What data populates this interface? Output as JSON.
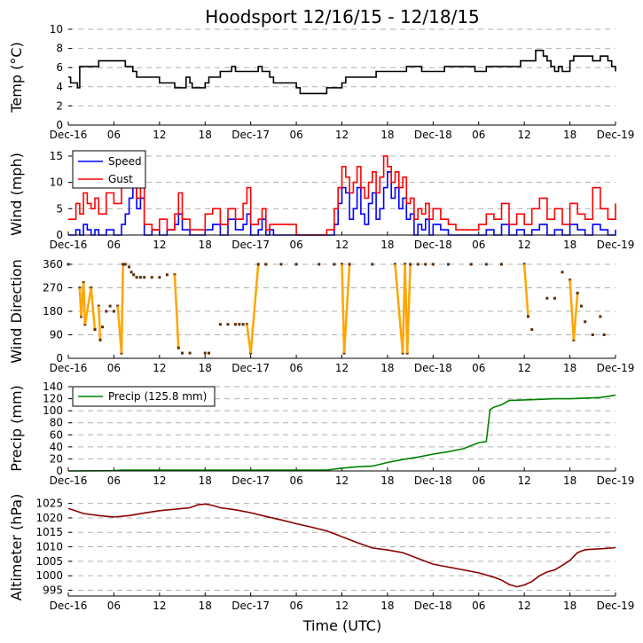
{
  "title": "Hoodsport 12/16/15 - 12/18/15",
  "xlabel": "Time (UTC)",
  "x_ticks": [
    {
      "h": 0,
      "label": "Dec-16"
    },
    {
      "h": 6,
      "label": "06"
    },
    {
      "h": 12,
      "label": "12"
    },
    {
      "h": 18,
      "label": "18"
    },
    {
      "h": 24,
      "label": "Dec-17"
    },
    {
      "h": 30,
      "label": "06"
    },
    {
      "h": 36,
      "label": "12"
    },
    {
      "h": 42,
      "label": "18"
    },
    {
      "h": 48,
      "label": "Dec-18"
    },
    {
      "h": 54,
      "label": "06"
    },
    {
      "h": 60,
      "label": "12"
    },
    {
      "h": 66,
      "label": "18"
    },
    {
      "h": 72,
      "label": "Dec-19"
    }
  ],
  "colors": {
    "temp": "#000000",
    "speed": "#0000ff",
    "gust": "#ff0000",
    "direction": "#ffa500",
    "precip": "#008000",
    "altimeter": "#8b0000",
    "grid": "#b0b0b0"
  },
  "chart_data": [
    {
      "type": "line",
      "ylabel": "Temp ($^\\circ$C)",
      "ylabel_display": "Temp (°C)",
      "ylim": [
        0,
        10
      ],
      "yticks": [
        0,
        2,
        4,
        6,
        8,
        10
      ],
      "xlim_hours": [
        0,
        72
      ],
      "series": [
        {
          "name": "Temp",
          "x": [
            0,
            0.3,
            0.5,
            1.2,
            1.5,
            4,
            7,
            7.5,
            8.5,
            9,
            12,
            14,
            14.5,
            15.5,
            16,
            16.3,
            18,
            18.5,
            20,
            20.5,
            21,
            21.5,
            22,
            24,
            25,
            25.5,
            26.5,
            27,
            30,
            30.5,
            33,
            34,
            35,
            35.5,
            36,
            36.5,
            40,
            40.5,
            44,
            44.5,
            46,
            46.5,
            49,
            49.5,
            53,
            53.5,
            54,
            55,
            55.5,
            58,
            59,
            59.5,
            61.5,
            62,
            62.5,
            63,
            63.5,
            64,
            64.5,
            65,
            66,
            66.5,
            67,
            68,
            69,
            70,
            70.5,
            71,
            71.5,
            72
          ],
          "y": [
            5.0,
            4.4,
            4.4,
            3.9,
            6.1,
            6.7,
            6.7,
            6.1,
            5.6,
            5.0,
            4.4,
            3.9,
            3.9,
            5.0,
            4.4,
            3.9,
            4.4,
            5.0,
            5.6,
            5.6,
            5.6,
            6.1,
            5.6,
            5.6,
            6.1,
            5.6,
            5.0,
            4.4,
            3.9,
            3.3,
            3.3,
            3.9,
            3.9,
            3.9,
            4.4,
            5.0,
            5.0,
            5.6,
            5.6,
            6.1,
            6.1,
            5.6,
            5.6,
            6.1,
            6.1,
            5.6,
            5.6,
            6.1,
            6.1,
            6.1,
            6.1,
            6.7,
            7.8,
            7.8,
            7.2,
            6.7,
            6.1,
            5.6,
            6.1,
            5.6,
            6.7,
            7.2,
            7.2,
            7.2,
            6.7,
            7.2,
            7.2,
            6.7,
            6.1,
            5.6
          ]
        }
      ]
    },
    {
      "type": "line",
      "ylabel": "Wind (mph)",
      "ylim": [
        0,
        16
      ],
      "yticks": [
        0,
        5,
        10,
        15
      ],
      "xlim_hours": [
        0,
        72
      ],
      "legend": {
        "location": "top-left",
        "entries": [
          "Speed",
          "Gust"
        ]
      },
      "series": [
        {
          "name": "Speed",
          "x": [
            0,
            1,
            1.5,
            2,
            2.5,
            3,
            3.5,
            4,
            5,
            6,
            7,
            7.5,
            8,
            8.5,
            9,
            9.5,
            10,
            11,
            12,
            13,
            14,
            14.5,
            15,
            16,
            17,
            18,
            19,
            20,
            21,
            22,
            23,
            23.5,
            24,
            25,
            25.5,
            26,
            26.5,
            27,
            28,
            29,
            30,
            31,
            32,
            33,
            34,
            35,
            35.5,
            36,
            36.5,
            37,
            37.5,
            38,
            38.5,
            39,
            39.5,
            40,
            40.5,
            41,
            41.5,
            42,
            42.5,
            43,
            43.5,
            44,
            44.5,
            45,
            45.5,
            46,
            46.5,
            47,
            47.5,
            48,
            49,
            50,
            51,
            52,
            53,
            54,
            55,
            56,
            57,
            58,
            59,
            60,
            61,
            62,
            63,
            64,
            65,
            66,
            67,
            68,
            69,
            70,
            71,
            72
          ],
          "y": [
            0,
            1,
            0,
            2,
            1,
            0,
            1,
            0,
            1,
            0,
            2,
            4,
            7,
            9,
            5,
            7,
            0,
            1,
            0,
            1,
            2,
            4,
            1,
            0,
            0,
            1,
            2,
            0,
            3,
            1,
            2,
            4,
            0,
            1,
            3,
            0,
            1,
            0,
            0,
            0,
            0,
            0,
            0,
            0,
            0,
            2,
            6,
            9,
            8,
            3,
            5,
            9,
            4,
            2,
            6,
            8,
            3,
            5,
            9,
            12,
            7,
            9,
            5,
            7,
            3,
            4,
            0,
            2,
            1,
            3,
            0,
            2,
            1,
            0,
            0,
            0,
            0,
            0,
            1,
            0,
            2,
            0,
            1,
            0,
            1,
            2,
            0,
            1,
            0,
            2,
            1,
            0,
            2,
            1,
            0,
            1
          ]
        },
        {
          "name": "Gust",
          "x": [
            0,
            1,
            1.5,
            2,
            2.5,
            3,
            3.5,
            4,
            5,
            6,
            7,
            7.5,
            8,
            8.5,
            9,
            9.5,
            10,
            11,
            12,
            13,
            14,
            14.5,
            15,
            16,
            17,
            18,
            19,
            20,
            21,
            22,
            23,
            23.5,
            24,
            25,
            25.5,
            26,
            26.5,
            27,
            28,
            29,
            30,
            31,
            32,
            33,
            34,
            35,
            35.5,
            36,
            36.5,
            37,
            37.5,
            38,
            38.5,
            39,
            39.5,
            40,
            40.5,
            41,
            41.5,
            42,
            42.5,
            43,
            43.5,
            44,
            44.5,
            45,
            45.5,
            46,
            46.5,
            47,
            47.5,
            48,
            49,
            50,
            51,
            52,
            53,
            54,
            55,
            56,
            57,
            58,
            59,
            60,
            61,
            62,
            63,
            64,
            65,
            66,
            67,
            68,
            69,
            70,
            71,
            72
          ],
          "y": [
            3,
            6,
            4,
            8,
            6,
            5,
            7,
            4,
            8,
            6,
            10,
            12,
            13,
            11,
            7,
            9,
            2,
            1,
            3,
            1,
            4,
            8,
            3,
            1,
            1,
            4,
            5,
            2,
            5,
            3,
            6,
            9,
            2,
            3,
            5,
            1,
            2,
            2,
            2,
            2,
            0,
            0,
            0,
            0,
            1,
            5,
            9,
            13,
            11,
            8,
            10,
            13,
            9,
            7,
            10,
            12,
            8,
            11,
            15,
            13,
            10,
            12,
            9,
            11,
            6,
            7,
            3,
            5,
            4,
            6,
            3,
            5,
            3,
            2,
            1,
            1,
            1,
            2,
            4,
            3,
            6,
            2,
            4,
            2,
            5,
            7,
            3,
            5,
            2,
            6,
            4,
            3,
            9,
            5,
            3,
            6
          ]
        }
      ]
    },
    {
      "type": "scatter",
      "ylabel": "Wind Direction",
      "ylim": [
        0,
        360
      ],
      "yticks": [
        0,
        90,
        180,
        270,
        360
      ],
      "xlim_hours": [
        0,
        72
      ],
      "series": [
        {
          "name": "Direction",
          "x": [
            0,
            1.5,
            1.7,
            2,
            2.2,
            3,
            3.5,
            4,
            4.2,
            4.5,
            5,
            5.5,
            6,
            6.5,
            7,
            7.2,
            7.5,
            8,
            8.3,
            8.6,
            9,
            9.5,
            10,
            11,
            12,
            13,
            14,
            14.5,
            15,
            16,
            18,
            18.5,
            20,
            21,
            22,
            22.5,
            23,
            23.5,
            24,
            25,
            26,
            28,
            30,
            33,
            35,
            36,
            36.3,
            37,
            40,
            43,
            44,
            44.3,
            44.6,
            45,
            46,
            47,
            48,
            50,
            53,
            55,
            57,
            60,
            60.5,
            61,
            63,
            64,
            65,
            66,
            66.5,
            67,
            67.5,
            68,
            69,
            70,
            70.5
          ],
          "y": [
            360,
            270,
            160,
            290,
            130,
            270,
            110,
            200,
            70,
            120,
            180,
            200,
            180,
            200,
            20,
            360,
            360,
            350,
            330,
            320,
            310,
            310,
            310,
            310,
            310,
            320,
            320,
            40,
            20,
            20,
            20,
            20,
            130,
            130,
            130,
            130,
            130,
            130,
            20,
            360,
            360,
            360,
            360,
            360,
            360,
            360,
            20,
            360,
            360,
            360,
            20,
            360,
            20,
            360,
            360,
            360,
            360,
            360,
            360,
            360,
            360,
            360,
            160,
            110,
            230,
            230,
            330,
            300,
            70,
            250,
            200,
            140,
            90,
            160,
            90
          ]
        }
      ]
    },
    {
      "type": "line",
      "ylabel": "Precip (mm)",
      "ylim": [
        0,
        140
      ],
      "yticks": [
        0,
        20,
        40,
        60,
        80,
        100,
        120,
        140
      ],
      "xlim_hours": [
        0,
        72
      ],
      "legend": {
        "location": "top-left",
        "entries": [
          "Precip (125.8 mm)"
        ]
      },
      "series": [
        {
          "name": "Precip (125.8 mm)",
          "x": [
            0,
            6,
            7,
            12,
            24,
            30,
            33,
            34,
            36,
            38,
            40,
            42,
            44,
            46,
            48,
            50,
            52,
            53,
            54,
            55,
            55.5,
            56,
            56.5,
            57,
            58,
            60,
            62,
            64,
            66,
            68,
            70,
            71,
            72
          ],
          "y": [
            0,
            0.5,
            1.5,
            1.5,
            1.5,
            1.5,
            1.5,
            1.5,
            4.5,
            7,
            8,
            14,
            19,
            23,
            28,
            32,
            37,
            42,
            47,
            49,
            102,
            106,
            108,
            110,
            117,
            118,
            119,
            120,
            120,
            121,
            122,
            124,
            125.8
          ]
        }
      ]
    },
    {
      "type": "line",
      "ylabel": "Altimeter (hPa)",
      "ylim": [
        993,
        1025.5
      ],
      "yticks": [
        995,
        1000,
        1005,
        1010,
        1015,
        1020,
        1025
      ],
      "xlim_hours": [
        0,
        72
      ],
      "series": [
        {
          "name": "Altimeter",
          "x": [
            0,
            2,
            4,
            6,
            8,
            10,
            12,
            14,
            16,
            17,
            18,
            19,
            20,
            22,
            24,
            26,
            28,
            30,
            32,
            34,
            36,
            38,
            40,
            42,
            44,
            46,
            48,
            50,
            52,
            54,
            56,
            57,
            58,
            59,
            60,
            61,
            62,
            63,
            64,
            65,
            66,
            67,
            68,
            70,
            72
          ],
          "y": [
            1023.3,
            1021.5,
            1020.8,
            1020.3,
            1020.8,
            1021.7,
            1022.5,
            1023.0,
            1023.5,
            1024.5,
            1024.8,
            1024.3,
            1023.5,
            1022.8,
            1021.8,
            1020.5,
            1019.3,
            1018.0,
            1016.8,
            1015.5,
            1013.5,
            1011.5,
            1009.6,
            1008.9,
            1008.0,
            1006.0,
            1004.0,
            1003.0,
            1002.0,
            1001.0,
            999.5,
            998.5,
            997.0,
            996.2,
            996.8,
            998.0,
            1000.0,
            1001.3,
            1002.0,
            1003.6,
            1005.3,
            1008.0,
            1009.0,
            1009.3,
            1009.7
          ]
        }
      ]
    }
  ]
}
